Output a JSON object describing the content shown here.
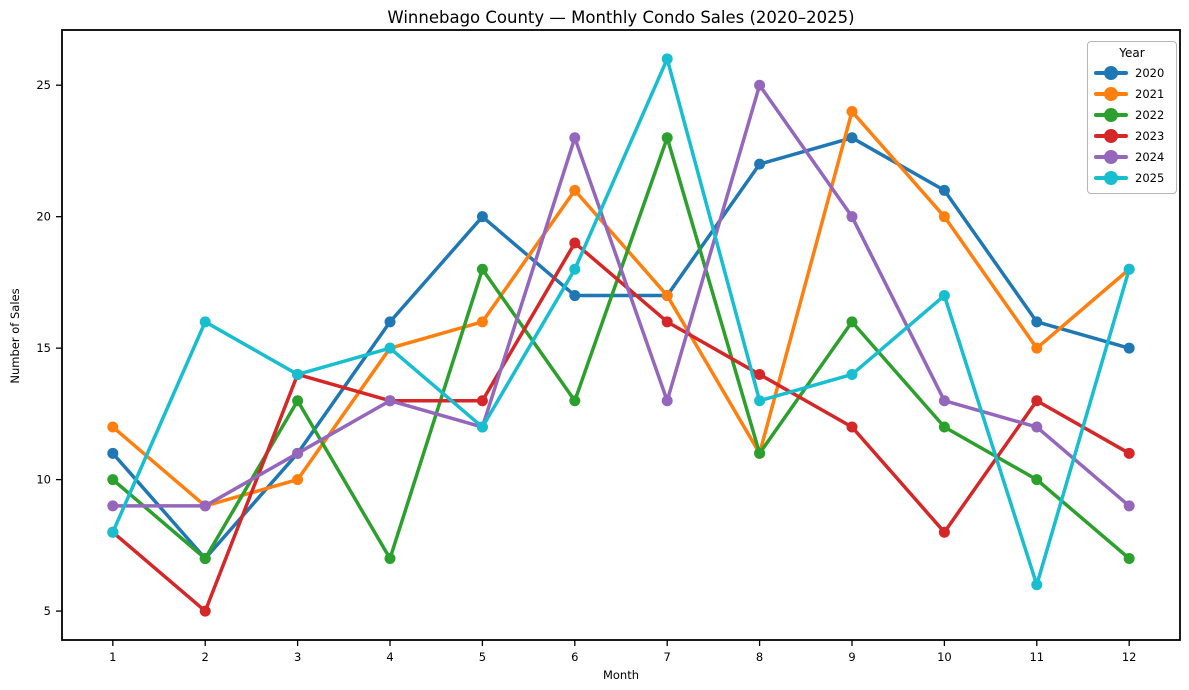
{
  "title": "Winnebago County — Monthly Condo Sales (2020–2025)",
  "chart_data": {
    "type": "line",
    "title": "Winnebago County — Monthly Condo Sales (2020–2025)",
    "xlabel": "Month",
    "ylabel": "Number of Sales",
    "x": [
      1,
      2,
      3,
      4,
      5,
      6,
      7,
      8,
      9,
      10,
      11,
      12
    ],
    "xticks": [
      1,
      2,
      3,
      4,
      5,
      6,
      7,
      8,
      9,
      10,
      11,
      12
    ],
    "yticks": [
      5,
      10,
      15,
      20,
      25
    ],
    "xlim": [
      0.45,
      12.55
    ],
    "ylim": [
      3.9,
      27.1
    ],
    "grid": false,
    "legend": {
      "title": "Year",
      "position": "upper right"
    },
    "series": [
      {
        "name": "2020",
        "color": "#1f77b4",
        "values": [
          11,
          7,
          11,
          16,
          20,
          17,
          17,
          22,
          23,
          21,
          16,
          15
        ]
      },
      {
        "name": "2021",
        "color": "#ff7f0e",
        "values": [
          12,
          9,
          10,
          15,
          16,
          21,
          17,
          11,
          24,
          20,
          15,
          18
        ]
      },
      {
        "name": "2022",
        "color": "#2ca02c",
        "values": [
          10,
          7,
          13,
          7,
          18,
          13,
          23,
          11,
          16,
          12,
          10,
          7
        ]
      },
      {
        "name": "2023",
        "color": "#d62728",
        "values": [
          8,
          5,
          14,
          13,
          13,
          19,
          16,
          14,
          12,
          8,
          13,
          11
        ]
      },
      {
        "name": "2024",
        "color": "#9467bd",
        "values": [
          9,
          9,
          11,
          13,
          12,
          23,
          13,
          25,
          20,
          13,
          12,
          9
        ]
      },
      {
        "name": "2025",
        "color": "#17becf",
        "values": [
          8,
          16,
          14,
          15,
          12,
          18,
          26,
          13,
          14,
          17,
          6,
          18
        ]
      }
    ],
    "style": {
      "line_width": 3.5,
      "marker_radius": 5.5,
      "spine_color": "#000000",
      "text_color": "#000000",
      "background": "#ffffff"
    }
  }
}
